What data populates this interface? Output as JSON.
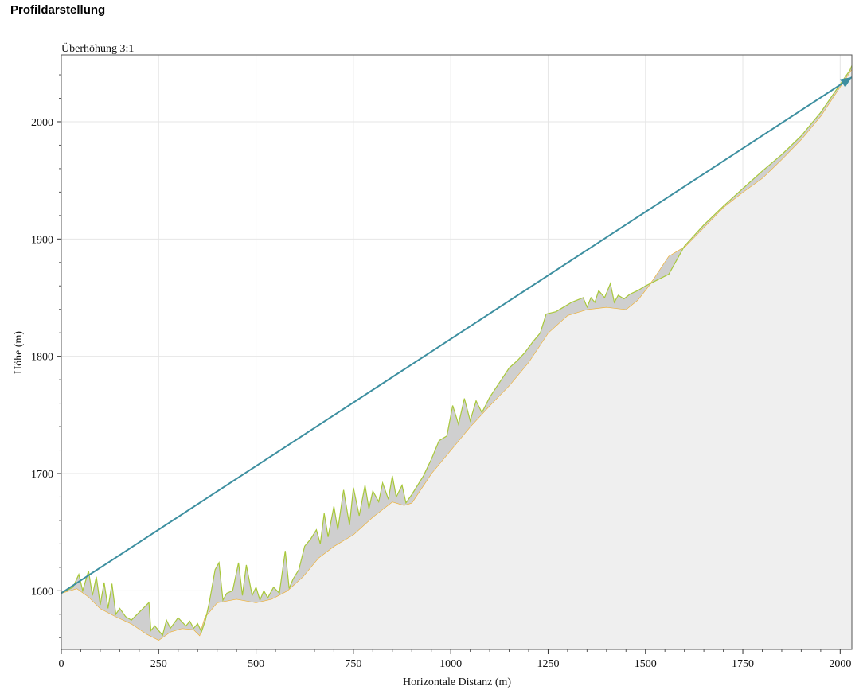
{
  "page": {
    "title": "Profildarstellung"
  },
  "chart_data": {
    "type": "area",
    "subtitle": "Überhöhung 3:1",
    "xlabel": "Horizontale Distanz (m)",
    "ylabel": "Höhe (m)",
    "xlim": [
      0,
      2030
    ],
    "ylim": [
      1550,
      2057
    ],
    "x_ticks": [
      0,
      250,
      500,
      750,
      1000,
      1250,
      1500,
      1750,
      2000
    ],
    "y_ticks": [
      1600,
      1700,
      1800,
      1900,
      2000
    ],
    "grid": true,
    "colors": {
      "terrain_fill": "#efefef",
      "terrain_line": "#f0b030",
      "surface_line": "#a8c83a",
      "surface_fill": "#cfcfcf",
      "sightline": "#3d8fa0",
      "grid": "#e6e6e6"
    },
    "series": [
      {
        "name": "",
        "role": "terrain",
        "x": [
          0,
          40,
          70,
          100,
          140,
          180,
          220,
          250,
          280,
          310,
          340,
          355,
          370,
          400,
          450,
          500,
          540,
          580,
          620,
          660,
          700,
          750,
          800,
          850,
          880,
          900,
          950,
          1000,
          1050,
          1100,
          1150,
          1200,
          1250,
          1300,
          1350,
          1400,
          1450,
          1480,
          1520,
          1560,
          1600,
          1650,
          1700,
          1750,
          1800,
          1850,
          1900,
          1950,
          2000,
          2030
        ],
        "y": [
          1598,
          1602,
          1595,
          1585,
          1578,
          1572,
          1563,
          1558,
          1565,
          1568,
          1567,
          1562,
          1578,
          1590,
          1593,
          1590,
          1593,
          1600,
          1612,
          1628,
          1638,
          1648,
          1663,
          1676,
          1673,
          1675,
          1700,
          1720,
          1740,
          1758,
          1775,
          1795,
          1820,
          1835,
          1840,
          1842,
          1840,
          1848,
          1865,
          1885,
          1893,
          1910,
          1927,
          1940,
          1952,
          1968,
          1985,
          2005,
          2030,
          2045
        ]
      },
      {
        "name": "",
        "role": "surface",
        "x": [
          0,
          30,
          45,
          55,
          70,
          80,
          90,
          100,
          110,
          120,
          130,
          140,
          150,
          165,
          180,
          225,
          230,
          240,
          260,
          270,
          280,
          300,
          320,
          330,
          340,
          350,
          360,
          370,
          380,
          395,
          405,
          415,
          425,
          440,
          455,
          465,
          475,
          490,
          500,
          510,
          520,
          530,
          545,
          560,
          575,
          585,
          595,
          610,
          625,
          640,
          655,
          665,
          675,
          685,
          700,
          710,
          725,
          740,
          750,
          765,
          780,
          790,
          800,
          815,
          825,
          840,
          850,
          860,
          875,
          885,
          900,
          930,
          950,
          970,
          990,
          1005,
          1020,
          1035,
          1050,
          1065,
          1080,
          1100,
          1130,
          1150,
          1170,
          1190,
          1210,
          1230,
          1245,
          1270,
          1290,
          1310,
          1340,
          1350,
          1360,
          1370,
          1380,
          1395,
          1410,
          1420,
          1430,
          1445,
          1460,
          1480,
          1500,
          1560,
          1600,
          1650,
          1700,
          1750,
          1800,
          1850,
          1900,
          1950,
          2000,
          2025,
          2030
        ],
        "y": [
          1598,
          1603,
          1614,
          1600,
          1617,
          1596,
          1612,
          1588,
          1607,
          1585,
          1606,
          1580,
          1585,
          1578,
          1575,
          1590,
          1566,
          1570,
          1562,
          1575,
          1568,
          1577,
          1570,
          1574,
          1568,
          1572,
          1565,
          1575,
          1590,
          1618,
          1624,
          1592,
          1598,
          1600,
          1624,
          1596,
          1622,
          1596,
          1603,
          1592,
          1600,
          1594,
          1603,
          1598,
          1634,
          1602,
          1610,
          1618,
          1638,
          1644,
          1652,
          1640,
          1666,
          1646,
          1672,
          1652,
          1686,
          1656,
          1688,
          1664,
          1690,
          1670,
          1685,
          1676,
          1692,
          1678,
          1698,
          1680,
          1690,
          1675,
          1682,
          1698,
          1712,
          1728,
          1732,
          1758,
          1742,
          1764,
          1745,
          1762,
          1752,
          1765,
          1780,
          1790,
          1796,
          1803,
          1812,
          1820,
          1836,
          1838,
          1842,
          1846,
          1850,
          1842,
          1850,
          1846,
          1856,
          1850,
          1862,
          1846,
          1852,
          1849,
          1853,
          1856,
          1860,
          1870,
          1894,
          1912,
          1928,
          1943,
          1958,
          1972,
          1988,
          2008,
          2032,
          2044,
          2048
        ]
      },
      {
        "name": "",
        "role": "sightline",
        "x": [
          0,
          2030
        ],
        "y": [
          1598,
          2038
        ]
      }
    ]
  }
}
